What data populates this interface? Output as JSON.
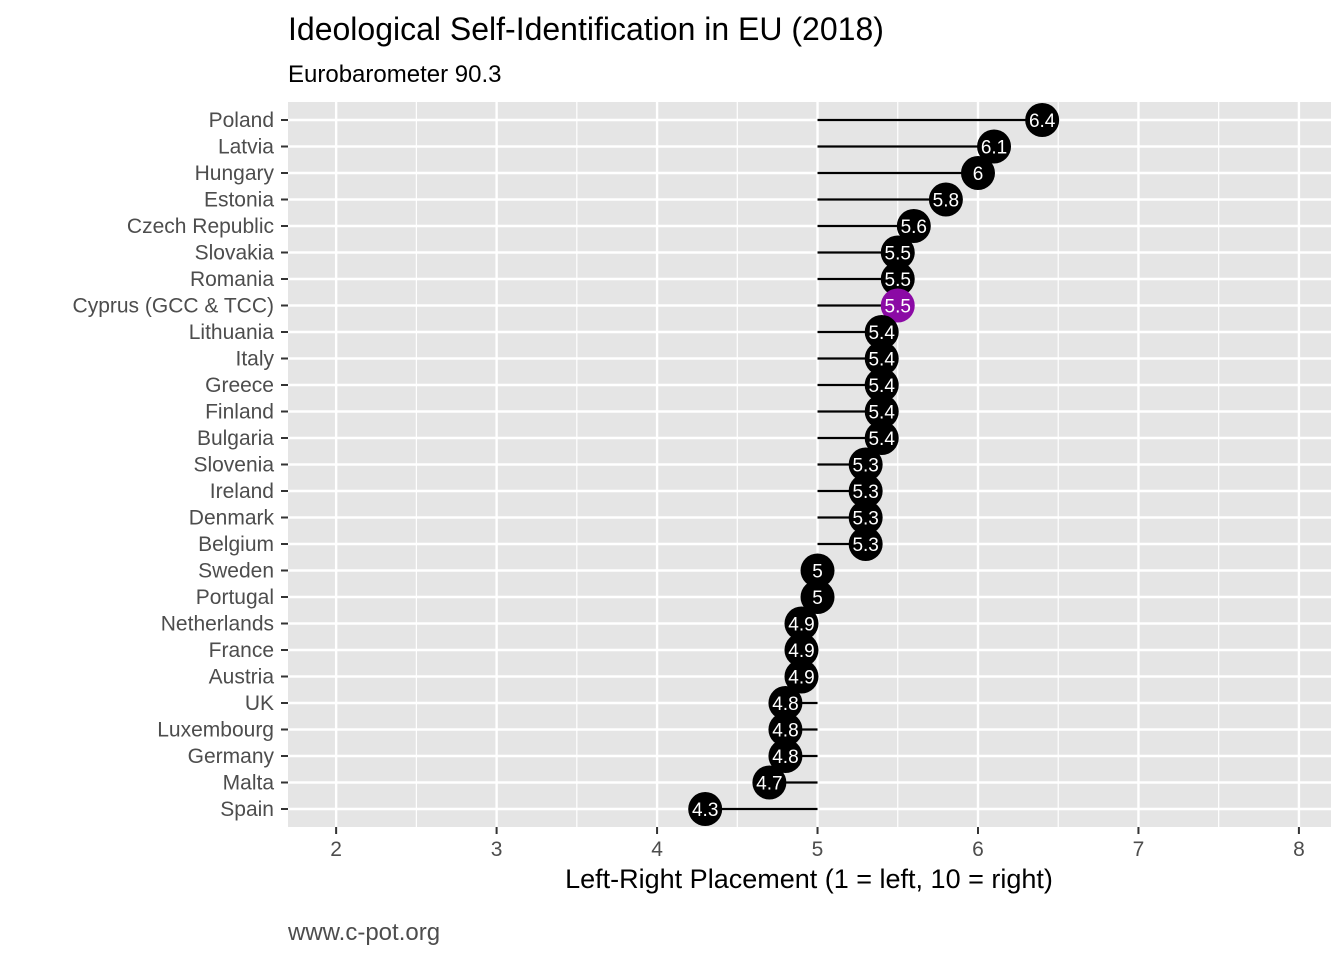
{
  "chart_data": {
    "type": "lollipop",
    "title": "Ideological Self-Identification in EU (2018)",
    "subtitle": "Eurobarometer 90.3",
    "caption": "www.c-pot.org",
    "xlabel": "Left-Right Placement (1 = left, 10 = right)",
    "ylabel": "",
    "xlim": [
      1.7,
      8.2
    ],
    "x_ticks": [
      2,
      3,
      4,
      5,
      6,
      7,
      8
    ],
    "baseline": 5,
    "grid": true,
    "panel_background": "#e5e5e5",
    "grid_color": "#ffffff",
    "point_color": "#000000",
    "highlight_color": "#8b0aa5",
    "label_color": "#ffffff",
    "categories": [
      "Poland",
      "Latvia",
      "Hungary",
      "Estonia",
      "Czech Republic",
      "Slovakia",
      "Romania",
      "Cyprus (GCC & TCC)",
      "Lithuania",
      "Italy",
      "Greece",
      "Finland",
      "Bulgaria",
      "Slovenia",
      "Ireland",
      "Denmark",
      "Belgium",
      "Sweden",
      "Portugal",
      "Netherlands",
      "France",
      "Austria",
      "UK",
      "Luxembourg",
      "Germany",
      "Malta",
      "Spain"
    ],
    "values": [
      6.4,
      6.1,
      6,
      5.8,
      5.6,
      5.5,
      5.5,
      5.5,
      5.4,
      5.4,
      5.4,
      5.4,
      5.4,
      5.3,
      5.3,
      5.3,
      5.3,
      5,
      5,
      4.9,
      4.9,
      4.9,
      4.8,
      4.8,
      4.8,
      4.7,
      4.3
    ],
    "labels": [
      "6.4",
      "6.1",
      "6",
      "5.8",
      "5.6",
      "5.5",
      "5.5",
      "5.5",
      "5.4",
      "5.4",
      "5.4",
      "5.4",
      "5.4",
      "5.3",
      "5.3",
      "5.3",
      "5.3",
      "5",
      "5",
      "4.9",
      "4.9",
      "4.9",
      "4.8",
      "4.8",
      "4.8",
      "4.7",
      "4.3"
    ],
    "highlighted": [
      "Cyprus (GCC & TCC)"
    ]
  }
}
